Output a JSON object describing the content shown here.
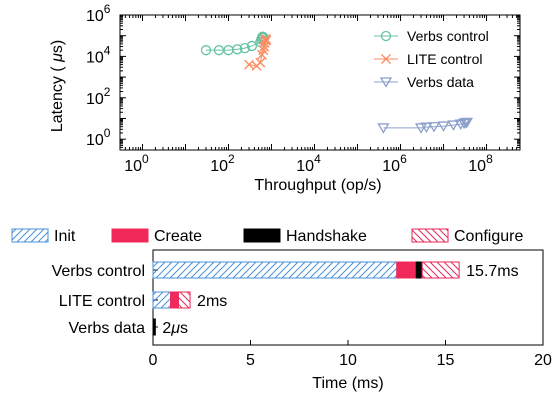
{
  "chart_data": [
    {
      "type": "scatter",
      "xlabel": "Throughput (op/s)",
      "ylabel": "Latency (μs)",
      "xscale": "log",
      "yscale": "log",
      "xlim": [
        0.3,
        600000000
      ],
      "ylim": [
        0.3,
        1000000
      ],
      "x_ticks": [
        {
          "value": 1,
          "base": "10",
          "exp": "0"
        },
        {
          "value": 100,
          "base": "10",
          "exp": "2"
        },
        {
          "value": 10000,
          "base": "10",
          "exp": "4"
        },
        {
          "value": 1000000,
          "base": "10",
          "exp": "6"
        },
        {
          "value": 100000000,
          "base": "10",
          "exp": "8"
        }
      ],
      "y_ticks": [
        {
          "value": 1,
          "base": "10",
          "exp": "0"
        },
        {
          "value": 100,
          "base": "10",
          "exp": "2"
        },
        {
          "value": 10000,
          "base": "10",
          "exp": "4"
        },
        {
          "value": 1000000,
          "base": "10",
          "exp": "6"
        }
      ],
      "legend_position": "top-right",
      "grid": false,
      "series": [
        {
          "name": "Verbs control",
          "marker": "circle",
          "color": "#66c2a5",
          "points": [
            [
              30,
              20000
            ],
            [
              60,
              20000
            ],
            [
              100,
              20000
            ],
            [
              160,
              22000
            ],
            [
              240,
              25000
            ],
            [
              350,
              32000
            ],
            [
              550,
              50000
            ],
            [
              580,
              65000
            ],
            [
              600,
              80000
            ],
            [
              620,
              90000
            ],
            [
              650,
              85000
            ]
          ]
        },
        {
          "name": "LITE control",
          "marker": "x",
          "color": "#fc8d62",
          "points": [
            [
              300,
              4000
            ],
            [
              450,
              3500
            ],
            [
              550,
              5000
            ],
            [
              600,
              12000
            ],
            [
              650,
              20000
            ],
            [
              680,
              30000
            ],
            [
              700,
              45000
            ],
            [
              720,
              60000
            ],
            [
              740,
              70000
            ],
            [
              760,
              60000
            ]
          ]
        },
        {
          "name": "Verbs data",
          "marker": "triangle-down",
          "color": "#8da0cb",
          "points": [
            [
              400000,
              3.5
            ],
            [
              3000000,
              3.5
            ],
            [
              4000000,
              3.8
            ],
            [
              6000000,
              4
            ],
            [
              10000000,
              4.3
            ],
            [
              17000000,
              4.8
            ],
            [
              25000000,
              5.3
            ],
            [
              30000000,
              5.8
            ],
            [
              33000000,
              6.2
            ],
            [
              35000000,
              6.5
            ]
          ]
        }
      ]
    },
    {
      "type": "bar",
      "orientation": "horizontal",
      "stacked": true,
      "xlabel": "Time (ms)",
      "xlim": [
        0,
        20
      ],
      "x_ticks": [
        0,
        5,
        10,
        15,
        20
      ],
      "legend_position": "top",
      "phases": [
        {
          "name": "Init",
          "color": "#4a90d9",
          "pattern": "hatch-right"
        },
        {
          "name": "Create",
          "color": "#f0295a",
          "pattern": "solid"
        },
        {
          "name": "Handshake",
          "color": "#000000",
          "pattern": "solid"
        },
        {
          "name": "Configure",
          "color": "#e8285a",
          "pattern": "hatch-left"
        }
      ],
      "categories": [
        "Verbs control",
        "LITE control",
        "Verbs data"
      ],
      "values": [
        [
          12.5,
          1.0,
          0.3,
          1.9
        ],
        [
          0.9,
          0.4,
          0.0,
          0.6
        ],
        [
          0.0,
          0.0,
          0.12,
          0.0
        ]
      ],
      "totals": [
        "15.7ms",
        "2ms",
        "2"
      ],
      "total_unit_symbol": "μ",
      "total_unit_suffix": "s"
    }
  ]
}
